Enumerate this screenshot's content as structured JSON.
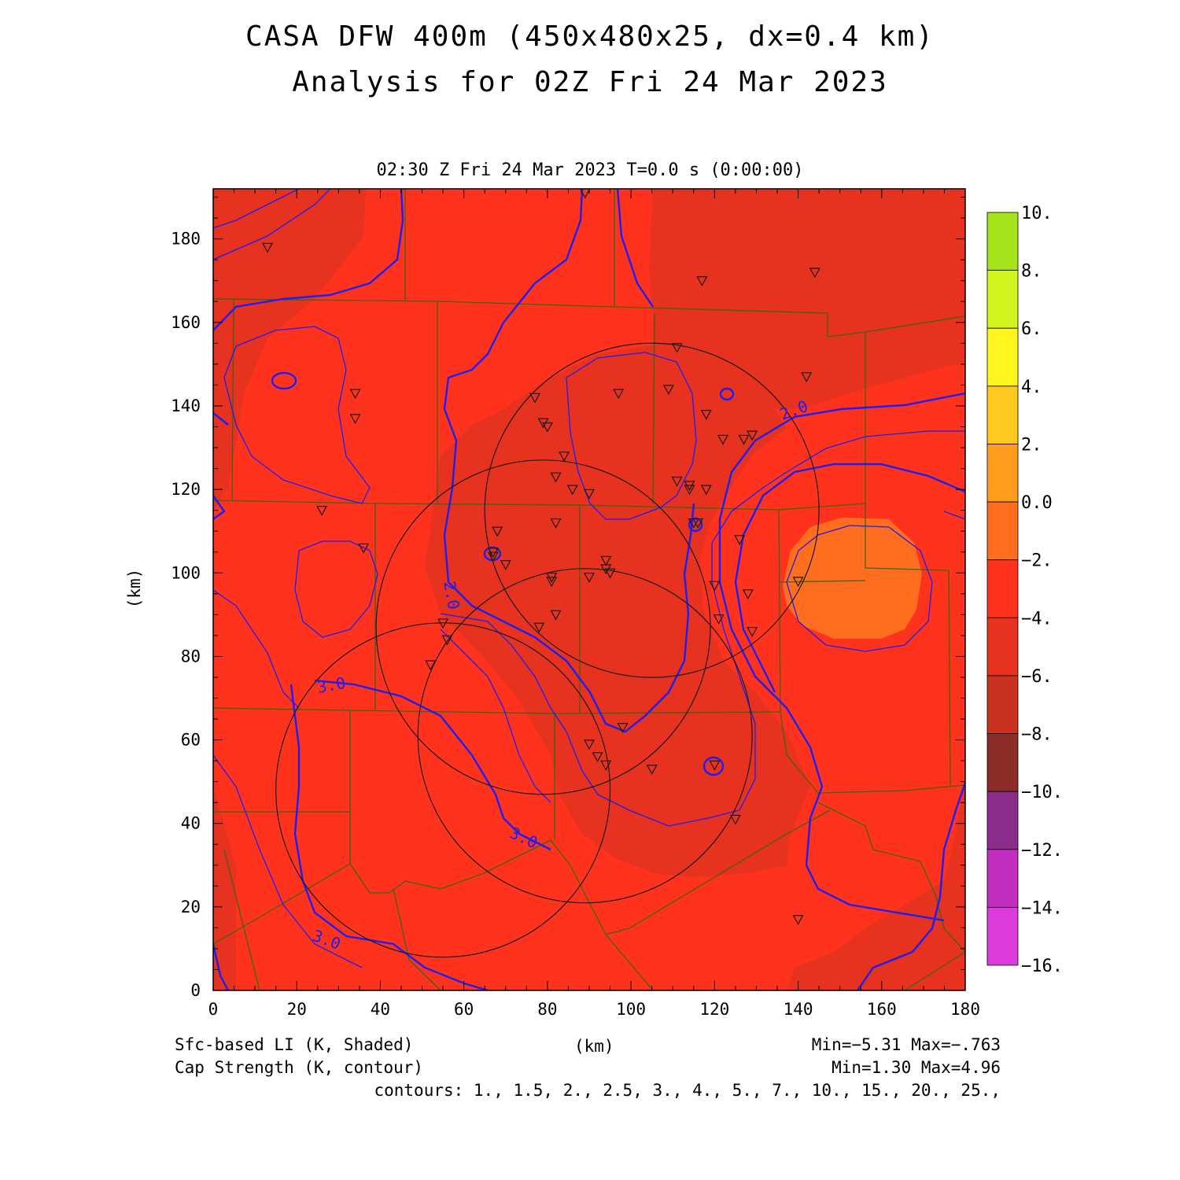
{
  "title_line1": "CASA DFW 400m (450x480x25, dx=0.4 km)",
  "title_line2": "Analysis for 02Z Fri 24 Mar 2023",
  "subtitle": "02:30 Z Fri 24 Mar 2023    T=0.0 s (0:00:00)",
  "x_axis": {
    "label": "(km)",
    "range": [
      0,
      180
    ],
    "ticks": [
      "0",
      "20",
      "40",
      "60",
      "80",
      "100",
      "120",
      "140",
      "160",
      "180"
    ]
  },
  "y_axis": {
    "label": "(km)",
    "range": [
      0,
      192
    ],
    "ticks": [
      "0",
      "20",
      "40",
      "60",
      "80",
      "100",
      "120",
      "140",
      "160",
      "180"
    ]
  },
  "colorbar": {
    "levels": [
      "10.",
      "8.",
      "6.",
      "4.",
      "2.",
      "0.0",
      "−2.",
      "−4.",
      "−6.",
      "−8.",
      "−10.",
      "−12.",
      "−14.",
      "−16."
    ],
    "colors": [
      "#a6e31a",
      "#d2f520",
      "#fff51e",
      "#ffc81e",
      "#ff9c1e",
      "#ff6e1e",
      "#ff321e",
      "#e6321e",
      "#c8321e",
      "#8c2d28",
      "#8c2d8c",
      "#c12dbe",
      "#dc3cdc"
    ]
  },
  "field_colors": {
    "base": "#ff321e",
    "darker": "#e6321e",
    "orange": "#ff6e1e",
    "contour": "#1e1ef0",
    "county": "#3c6414"
  },
  "footer": {
    "shaded_label": "Sfc-based LI (K, Shaded)",
    "contour_label": "Cap Strength (K, contour)",
    "x_unit": "(km)",
    "shaded_minmax": "Min=−5.31 Max=−.763",
    "contour_minmax": "Min=1.30 Max=4.96",
    "contours": "contours: 1., 1.5, 2., 2.5, 3., 4., 5., 7., 10., 15., 20., 25.,"
  },
  "contour_labels": [
    "2.0",
    "2.0",
    "3.0",
    "3.0",
    "3.0"
  ],
  "chart_data": {
    "type": "heatmap",
    "title": "CASA DFW 400m (450x480x25, dx=0.4 km)",
    "subtitle": "Analysis for 02Z Fri 24 Mar 2023",
    "xlabel": "(km)",
    "ylabel": "(km)",
    "xlim": [
      0,
      180
    ],
    "ylim": [
      0,
      192
    ],
    "radar_circles": [
      {
        "x": 105,
        "y": 115,
        "r": 40
      },
      {
        "x": 79,
        "y": 87,
        "r": 40
      },
      {
        "x": 89,
        "y": 61,
        "r": 40
      },
      {
        "x": 55,
        "y": 48,
        "r": 40
      }
    ],
    "stations": [
      [
        13,
        178
      ],
      [
        89,
        191
      ],
      [
        117,
        170
      ],
      [
        144,
        172
      ],
      [
        34,
        143
      ],
      [
        34,
        137
      ],
      [
        111,
        154
      ],
      [
        77,
        142
      ],
      [
        97,
        143
      ],
      [
        109,
        144
      ],
      [
        142,
        147
      ],
      [
        118,
        138
      ],
      [
        79,
        136
      ],
      [
        80,
        135
      ],
      [
        122,
        132
      ],
      [
        127,
        132
      ],
      [
        129,
        133
      ],
      [
        84,
        128
      ],
      [
        82,
        123
      ],
      [
        86,
        120
      ],
      [
        90,
        119
      ],
      [
        111,
        122
      ],
      [
        114,
        121
      ],
      [
        114,
        120
      ],
      [
        118,
        120
      ],
      [
        26,
        115
      ],
      [
        82,
        112
      ],
      [
        115,
        112
      ],
      [
        116,
        112
      ],
      [
        68,
        110
      ],
      [
        126,
        108
      ],
      [
        36,
        106
      ],
      [
        67,
        105
      ],
      [
        67,
        104
      ],
      [
        70,
        102
      ],
      [
        94,
        103
      ],
      [
        94,
        101
      ],
      [
        95,
        100
      ],
      [
        90,
        99
      ],
      [
        81,
        99
      ],
      [
        81,
        98
      ],
      [
        120,
        97
      ],
      [
        128,
        95
      ],
      [
        140,
        98
      ],
      [
        82,
        90
      ],
      [
        121,
        89
      ],
      [
        78,
        87
      ],
      [
        55,
        88
      ],
      [
        56,
        84
      ],
      [
        52,
        78
      ],
      [
        129,
        86
      ],
      [
        98,
        63
      ],
      [
        90,
        59
      ],
      [
        92,
        56
      ],
      [
        94,
        54
      ],
      [
        105,
        53
      ],
      [
        120,
        54
      ],
      [
        125,
        41
      ],
      [
        140,
        17
      ]
    ]
  }
}
